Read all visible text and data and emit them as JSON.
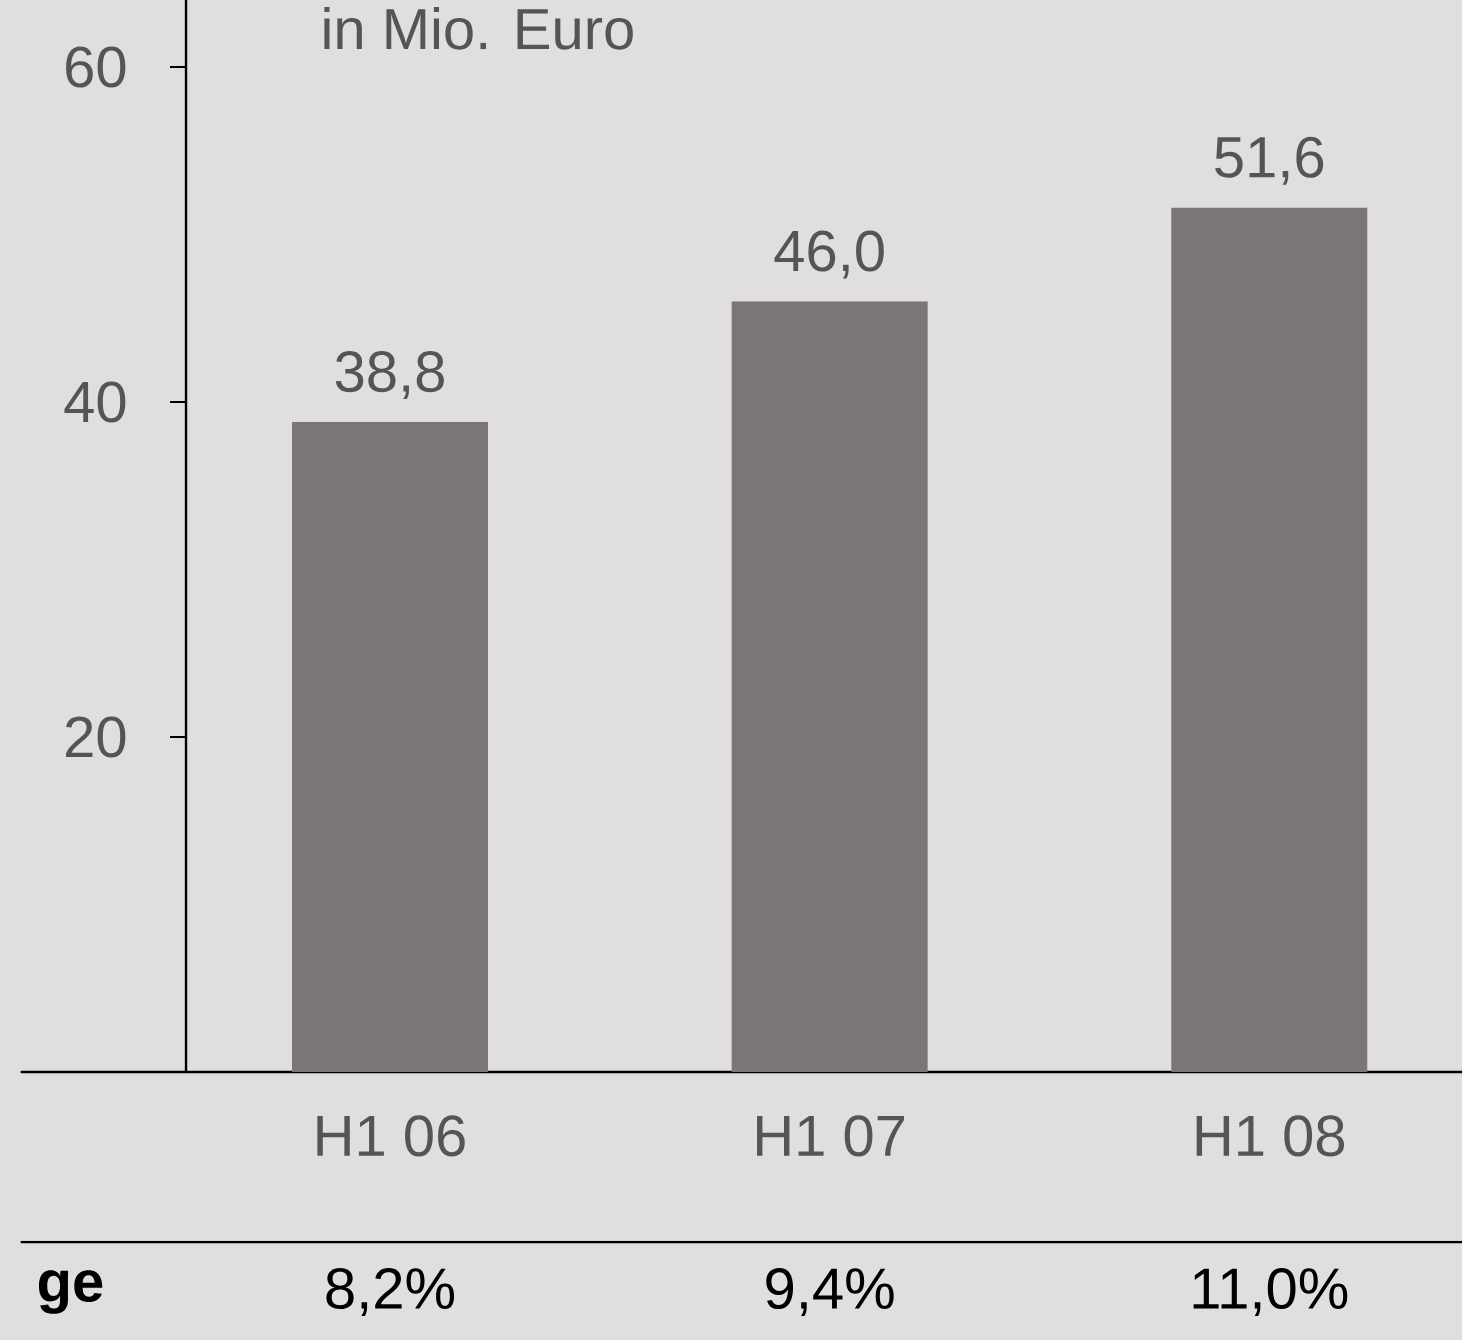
{
  "chart_data": {
    "type": "bar",
    "subtitle": "in Mio. Euro",
    "categories": [
      "H1 06",
      "H1 07",
      "H1 08"
    ],
    "values": [
      38.8,
      46.0,
      51.6
    ],
    "color": "#7a7578",
    "value_labels": [
      "38,8",
      "46,0",
      "51,6"
    ],
    "ylim": [
      0,
      64
    ],
    "yticks": [
      20,
      40,
      60
    ],
    "annotations": [
      "ge",
      "8,2%",
      "9,4%",
      "11,0%"
    ]
  }
}
